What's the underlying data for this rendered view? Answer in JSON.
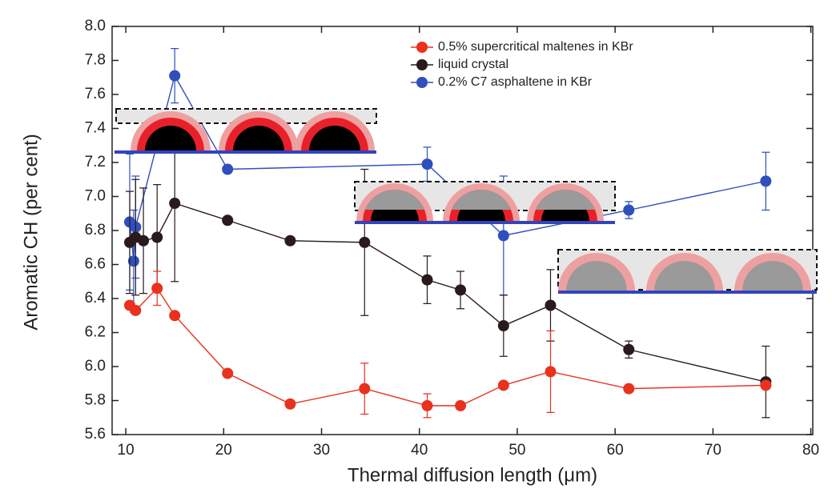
{
  "chart_data": {
    "type": "line",
    "x_label": "Thermal diffusion length (μm)",
    "y_label": "Aromatic CH (per cent)",
    "xlim": [
      8.6,
      80.2
    ],
    "ylim": [
      5.6,
      8.0
    ],
    "xticks": [
      10,
      20,
      30,
      40,
      50,
      60,
      70,
      80
    ],
    "yticks": [
      5.6,
      5.8,
      {
        "value": 6,
        "label": "6.0"
      },
      6.2,
      6.4,
      6.6,
      6.8,
      {
        "value": 7,
        "label": "7.0"
      },
      7.2,
      7.4,
      7.6,
      7.8,
      {
        "value": 8,
        "label": "8.0"
      }
    ],
    "legend": "upper right",
    "series": [
      {
        "name": "0.2% C7 asphaltene in KBr",
        "color": "#2f4fbd",
        "x": [
          10.4,
          10.8,
          11,
          15,
          20.4,
          40.8,
          48.6,
          61.4,
          75.4
        ],
        "values": [
          6.85,
          6.62,
          6.82,
          7.71,
          7.16,
          7.19,
          6.77,
          6.92,
          7.09
        ],
        "errors": [
          0.4,
          0.3,
          0.3,
          0.16,
          null,
          0.1,
          0.35,
          0.05,
          0.17
        ]
      },
      {
        "name": "liquid crystal",
        "color": "#2a1a1c",
        "x": [
          10.4,
          11,
          11.8,
          13.2,
          15,
          20.4,
          26.8,
          34.4,
          40.8,
          44.2,
          48.6,
          53.4,
          61.4,
          75.4
        ],
        "values": [
          6.73,
          6.76,
          6.74,
          6.76,
          6.96,
          6.86,
          6.74,
          6.73,
          6.51,
          6.45,
          6.24,
          6.36,
          6.1,
          5.91
        ],
        "errors": [
          0.3,
          0.34,
          0.31,
          0.31,
          0.46,
          null,
          null,
          0.43,
          0.14,
          0.11,
          0.18,
          0.21,
          0.05,
          0.21
        ]
      },
      {
        "name": "0.5% supercritical maltenes in KBr",
        "color": "#e8321e",
        "x": [
          10.4,
          11,
          13.2,
          15,
          20.4,
          26.8,
          34.4,
          40.8,
          44.2,
          48.6,
          53.4,
          61.4,
          75.4
        ],
        "values": [
          6.36,
          6.33,
          6.46,
          6.3,
          5.96,
          5.78,
          5.87,
          5.77,
          5.77,
          5.89,
          5.97,
          5.87,
          5.89
        ],
        "errors": [
          null,
          null,
          0.1,
          null,
          null,
          null,
          0.15,
          0.07,
          null,
          null,
          0.24,
          null,
          null
        ]
      }
    ]
  }
}
